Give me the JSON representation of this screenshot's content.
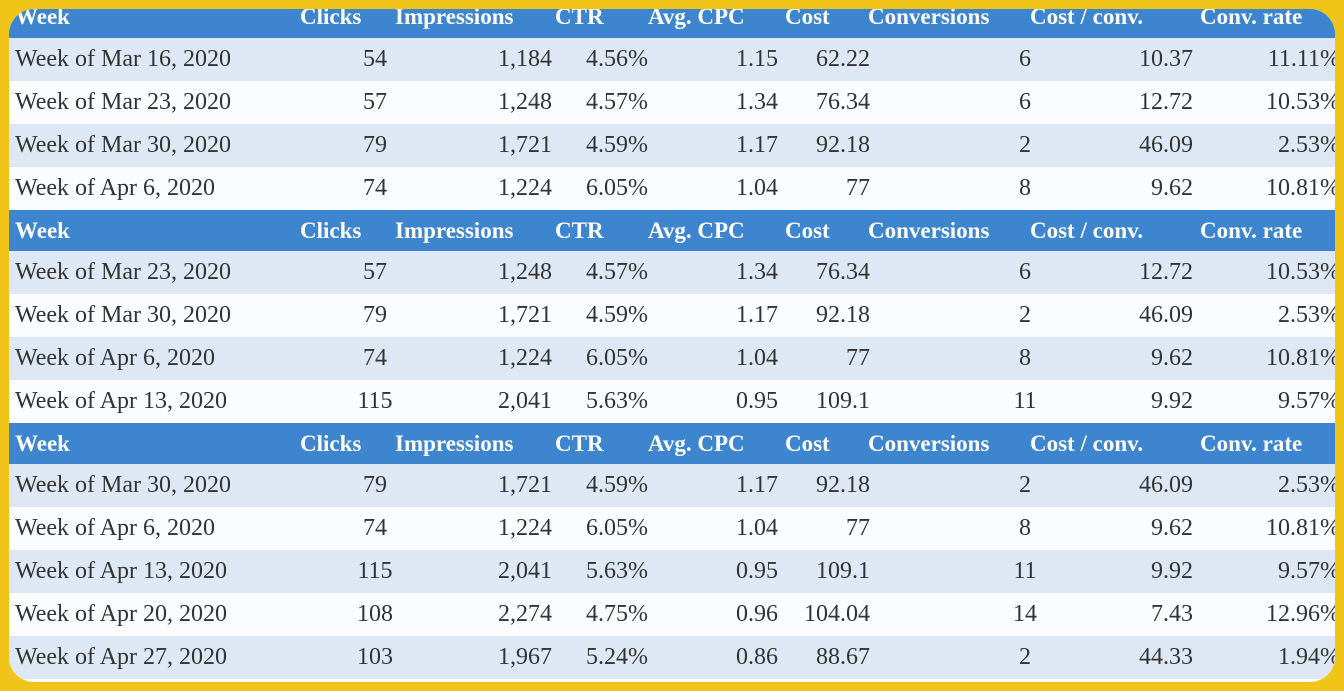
{
  "tables": [
    {
      "header": [
        "Week",
        "Clicks",
        "Impressions",
        "CTR",
        "Avg. CPC",
        "Cost",
        "Conversions",
        "Cost / conv.",
        "Conv. rate"
      ],
      "rows": [
        [
          "Week of Mar 16, 2020",
          "54",
          "1,184",
          "4.56%",
          "1.15",
          "62.22",
          "6",
          "10.37",
          "11.11%"
        ],
        [
          "Week of Mar 23, 2020",
          "57",
          "1,248",
          "4.57%",
          "1.34",
          "76.34",
          "6",
          "12.72",
          "10.53%"
        ],
        [
          "Week of Mar 30, 2020",
          "79",
          "1,721",
          "4.59%",
          "1.17",
          "92.18",
          "2",
          "46.09",
          "2.53%"
        ],
        [
          "Week of Apr 6, 2020",
          "74",
          "1,224",
          "6.05%",
          "1.04",
          "77",
          "8",
          "9.62",
          "10.81%"
        ]
      ]
    },
    {
      "header": [
        "Week",
        "Clicks",
        "Impressions",
        "CTR",
        "Avg. CPC",
        "Cost",
        "Conversions",
        "Cost / conv.",
        "Conv. rate"
      ],
      "rows": [
        [
          "Week of Mar 23, 2020",
          "57",
          "1,248",
          "4.57%",
          "1.34",
          "76.34",
          "6",
          "12.72",
          "10.53%"
        ],
        [
          "Week of Mar 30, 2020",
          "79",
          "1,721",
          "4.59%",
          "1.17",
          "92.18",
          "2",
          "46.09",
          "2.53%"
        ],
        [
          "Week of Apr 6, 2020",
          "74",
          "1,224",
          "6.05%",
          "1.04",
          "77",
          "8",
          "9.62",
          "10.81%"
        ],
        [
          "Week of Apr 13, 2020",
          "115",
          "2,041",
          "5.63%",
          "0.95",
          "109.1",
          "11",
          "9.92",
          "9.57%"
        ]
      ]
    },
    {
      "header": [
        "Week",
        "Clicks",
        "Impressions",
        "CTR",
        "Avg. CPC",
        "Cost",
        "Conversions",
        "Cost / conv.",
        "Conv. rate"
      ],
      "rows": [
        [
          "Week of Mar 30, 2020",
          "79",
          "1,721",
          "4.59%",
          "1.17",
          "92.18",
          "2",
          "46.09",
          "2.53%"
        ],
        [
          "Week of Apr 6, 2020",
          "74",
          "1,224",
          "6.05%",
          "1.04",
          "77",
          "8",
          "9.62",
          "10.81%"
        ],
        [
          "Week of Apr 13, 2020",
          "115",
          "2,041",
          "5.63%",
          "0.95",
          "109.1",
          "11",
          "9.92",
          "9.57%"
        ],
        [
          "Week of Apr 20, 2020",
          "108",
          "2,274",
          "4.75%",
          "0.96",
          "104.04",
          "14",
          "7.43",
          "12.96%"
        ],
        [
          "Week of Apr 27, 2020",
          "103",
          "1,967",
          "5.24%",
          "0.86",
          "88.67",
          "2",
          "44.33",
          "1.94%"
        ]
      ]
    }
  ]
}
